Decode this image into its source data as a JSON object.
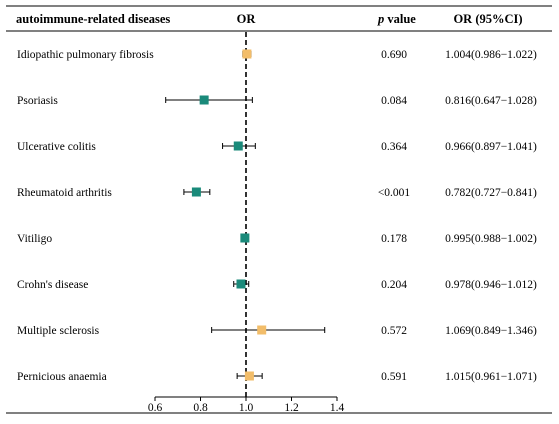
{
  "header": {
    "disease": "autoimmune-related diseases",
    "or": "OR",
    "p_prefix": "p",
    "p_suffix": " value",
    "ci": "OR (95%CI)"
  },
  "colors": {
    "significant": "#1a8a7a",
    "not_significant": "#f2bd6a",
    "line": "#000000"
  },
  "chart_data": {
    "type": "forest",
    "xlim": [
      0.6,
      1.4
    ],
    "xticks": [
      "0.6",
      "0.8",
      "1.0",
      "1.2",
      "1.4"
    ],
    "reference_line": 1.0,
    "rows": [
      {
        "name": "Idiopathic pulmonary fibrosis",
        "or": 1.004,
        "lo": 0.986,
        "hi": 1.022,
        "p": "0.690",
        "ci_text": "1.004(0.986−1.022)",
        "color": "#f2bd6a"
      },
      {
        "name": "Psoriasis",
        "or": 0.816,
        "lo": 0.647,
        "hi": 1.028,
        "p": "0.084",
        "ci_text": "0.816(0.647−1.028)",
        "color": "#1a8a7a"
      },
      {
        "name": "Ulcerative colitis",
        "or": 0.966,
        "lo": 0.897,
        "hi": 1.041,
        "p": "0.364",
        "ci_text": "0.966(0.897−1.041)",
        "color": "#1a8a7a"
      },
      {
        "name": "Rheumatoid arthritis",
        "or": 0.782,
        "lo": 0.727,
        "hi": 0.841,
        "p": "<0.001",
        "ci_text": "0.782(0.727−0.841)",
        "color": "#1a8a7a"
      },
      {
        "name": "Vitiligo",
        "or": 0.995,
        "lo": 0.988,
        "hi": 1.002,
        "p": "0.178",
        "ci_text": "0.995(0.988−1.002)",
        "color": "#1a8a7a"
      },
      {
        "name": "Crohn's disease",
        "or": 0.978,
        "lo": 0.946,
        "hi": 1.012,
        "p": "0.204",
        "ci_text": "0.978(0.946−1.012)",
        "color": "#1a8a7a"
      },
      {
        "name": "Multiple sclerosis",
        "or": 1.069,
        "lo": 0.849,
        "hi": 1.346,
        "p": "0.572",
        "ci_text": "1.069(0.849−1.346)",
        "color": "#f2bd6a"
      },
      {
        "name": "Pernicious anaemia",
        "or": 1.015,
        "lo": 0.961,
        "hi": 1.071,
        "p": "0.591",
        "ci_text": "1.015(0.961−1.071)",
        "color": "#f2bd6a"
      }
    ]
  }
}
